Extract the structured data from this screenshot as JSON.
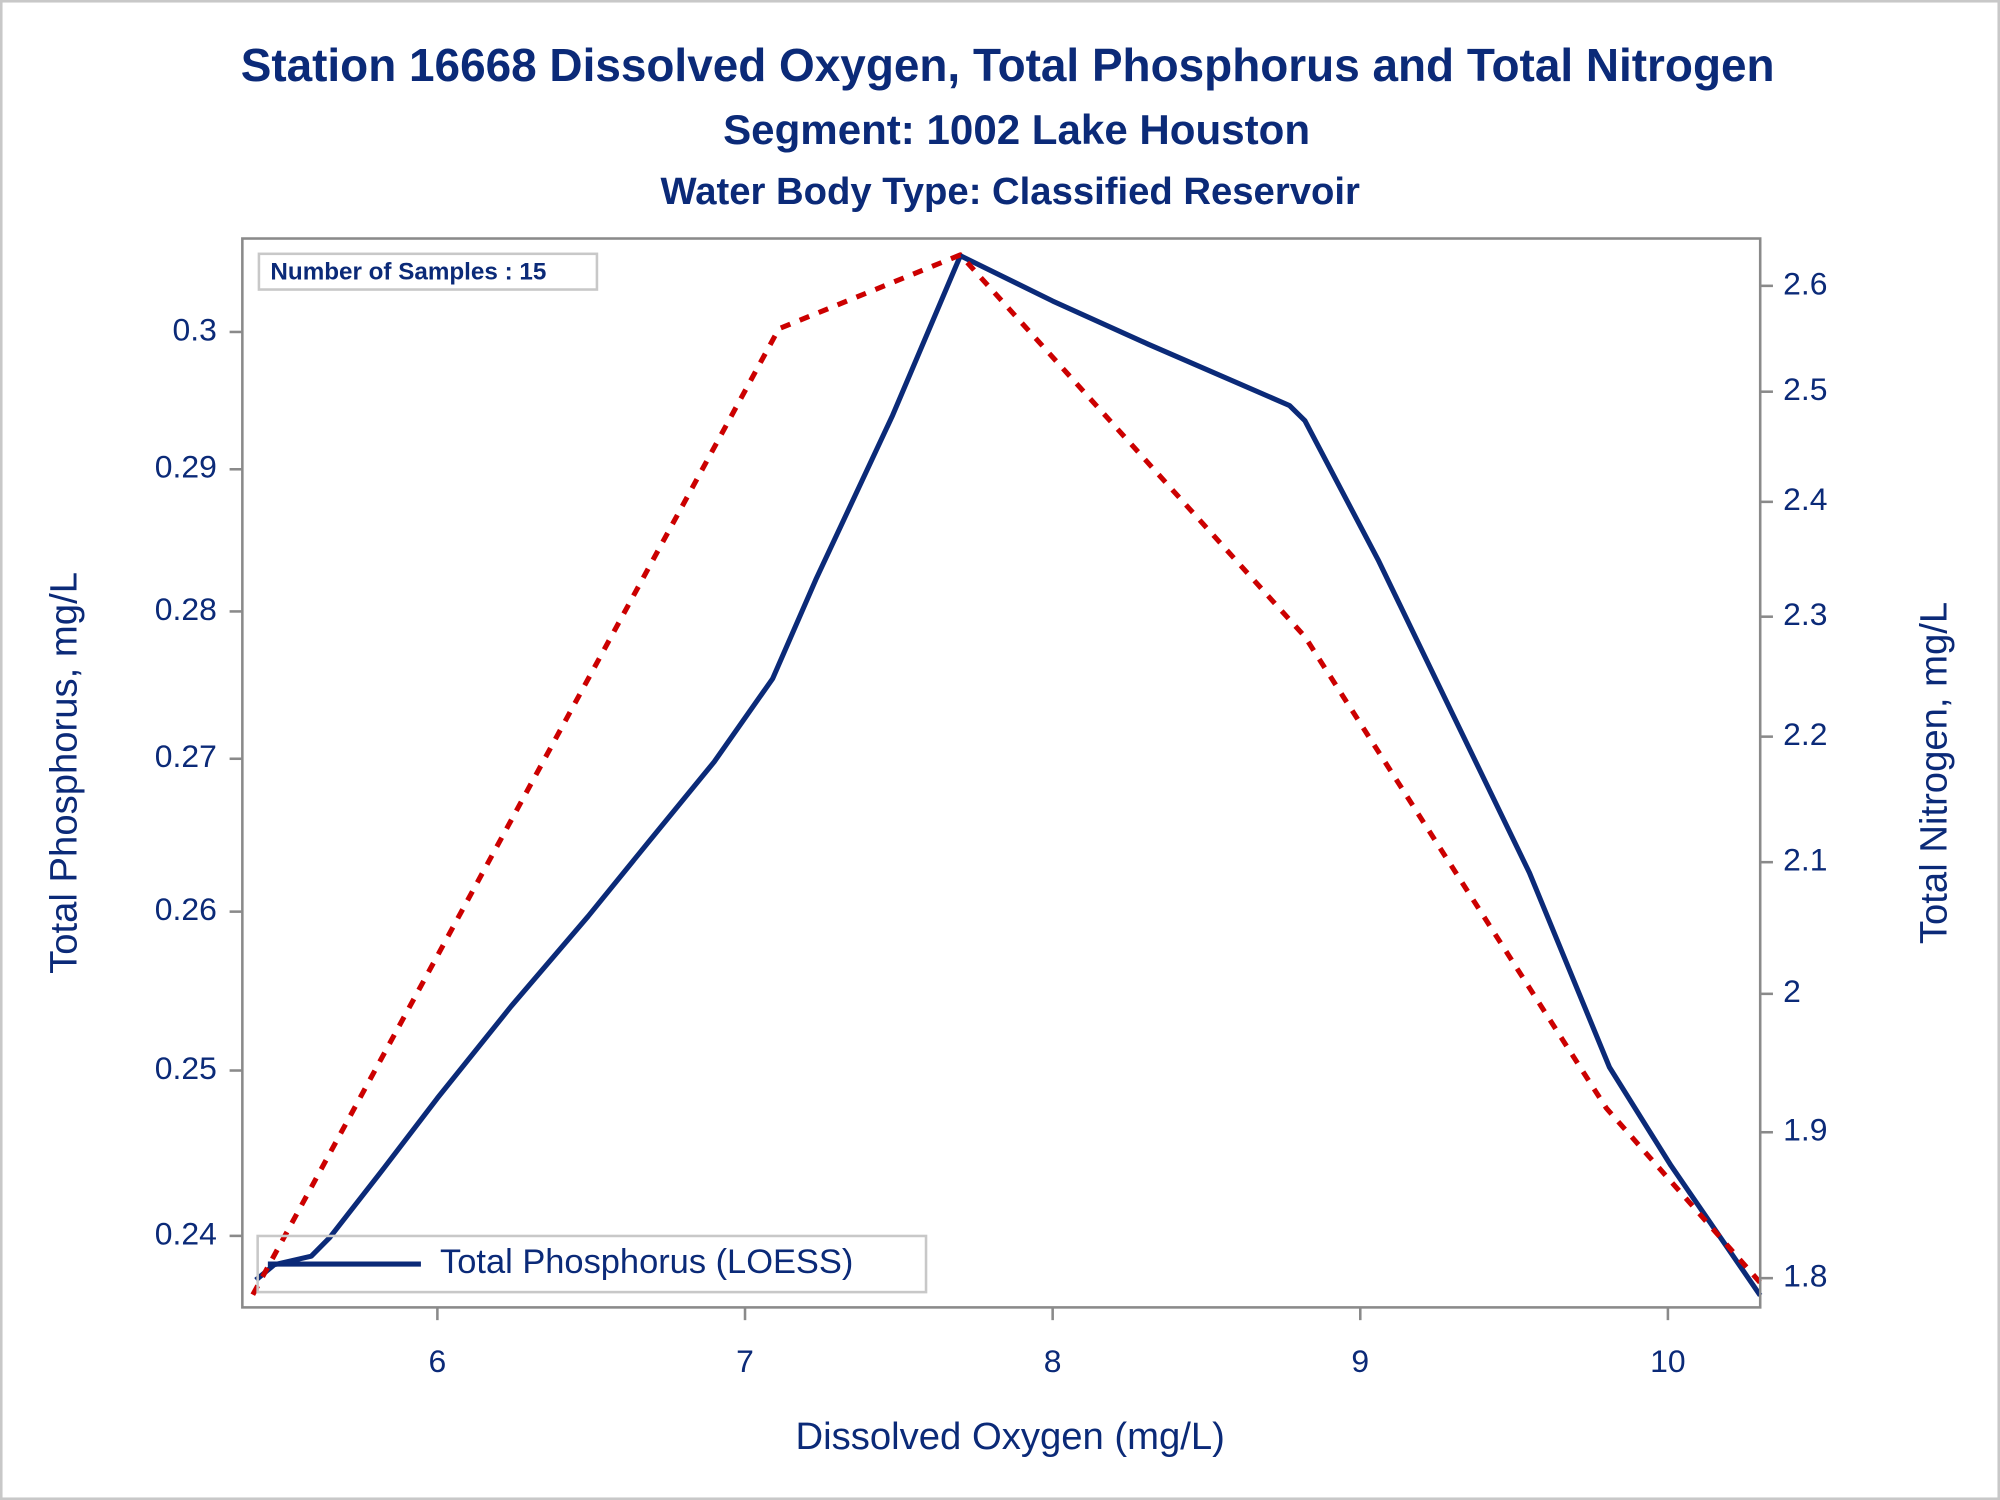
{
  "chart_data": {
    "type": "line",
    "title": "Station 16668  Dissolved Oxygen, Total Phosphorus and Total Nitrogen",
    "subtitle": "Segment: 1002  Lake Houston",
    "subtitle2": "Water Body Type: Classified Reservoir",
    "annotation": "Number of Samples : 15",
    "x_label": "Dissolved Oxygen (mg/L)",
    "y_label": "Total Phosphorus, mg/L",
    "y2_label": "Total Nitrogen, mg/L",
    "log_y": true,
    "log_y2": true,
    "legend": "lower left",
    "xlim": [
      5.366,
      10.3
    ],
    "xticks": [
      6,
      7,
      8,
      9,
      10
    ],
    "ylim": [
      0.2358,
      0.307
    ],
    "yticks": [
      0.24,
      0.25,
      0.26,
      0.27,
      0.28,
      0.29,
      {
        "value": 0.3,
        "label": "0.3"
      }
    ],
    "y2lim": [
      1.7806,
      2.646
    ],
    "y2ticks": [
      1.8,
      1.9,
      2,
      2.1,
      2.2,
      2.3,
      2.4,
      2.5,
      2.6
    ],
    "series": [
      {
        "name": "Total Phosphorus (LOESS)",
        "color": "#0b2a78",
        "x": [
          5.41,
          5.47,
          5.59,
          5.65,
          5.82,
          6.0,
          6.24,
          6.49,
          6.69,
          6.9,
          7.09,
          7.23,
          7.48,
          7.7,
          8.0,
          8.31,
          8.77,
          8.82,
          9.06,
          9.3,
          9.55,
          9.81,
          10.01,
          10.3
        ],
        "values": [
          0.2374,
          0.2383,
          0.2388,
          0.2399,
          0.2439,
          0.2483,
          0.254,
          0.2597,
          0.2646,
          0.2698,
          0.2754,
          0.2822,
          0.2939,
          0.3057,
          0.3023,
          0.2991,
          0.2946,
          0.2935,
          0.2835,
          0.273,
          0.2625,
          0.2502,
          0.2442,
          0.2365
        ]
      },
      {
        "color": "#cc0000",
        "axis": "y2",
        "dashed": true,
        "x": [
          5.4,
          7.11,
          7.7,
          8.82,
          9.8,
          10.3
        ],
        "values": [
          1.789,
          2.559,
          2.63,
          2.283,
          1.917,
          1.797
        ]
      }
    ]
  }
}
